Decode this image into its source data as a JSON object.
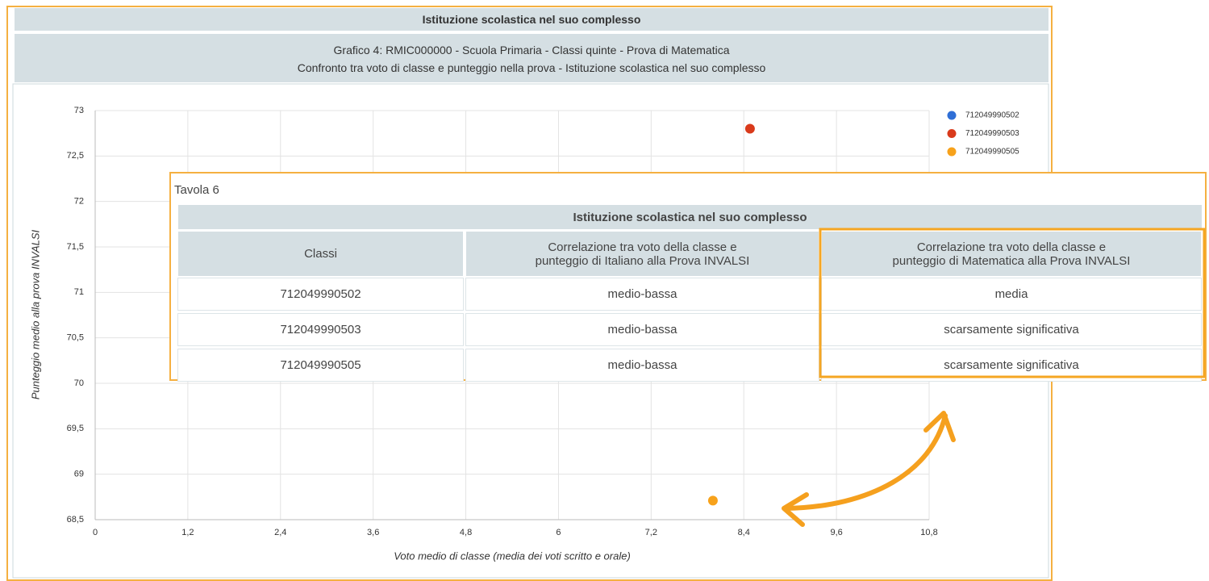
{
  "header": {
    "title": "Istituzione scolastica nel suo complesso",
    "subtitle_lines": [
      "Grafico 4: RMIC000000 - Scuola Primaria - Classi quinte - Prova di Matematica",
      "Confronto tra voto di classe e punteggio nella prova - Istituzione scolastica nel suo complesso"
    ]
  },
  "chart_data": {
    "type": "scatter",
    "x_label": "Voto medio di classe (media dei voti scritto e orale)",
    "y_label": "Punteggio medio alla prova INVALSI",
    "xlim": [
      0,
      10.8
    ],
    "xticks": [
      0,
      {
        "value": 1.2,
        "label": "1,2"
      },
      {
        "value": 2.4,
        "label": "2,4"
      },
      {
        "value": 3.6,
        "label": "3,6"
      },
      {
        "value": 4.8,
        "label": "4,8"
      },
      6,
      {
        "value": 7.2,
        "label": "7,2"
      },
      {
        "value": 8.4,
        "label": "8,4"
      },
      {
        "value": 9.6,
        "label": "9,6"
      },
      {
        "value": 10.8,
        "label": "10,8"
      }
    ],
    "ylim": [
      68.5,
      73
    ],
    "yticks": [
      {
        "value": 68.5,
        "label": "68,5"
      },
      69,
      {
        "value": 69.5,
        "label": "69,5"
      },
      70,
      {
        "value": 70.5,
        "label": "70,5"
      },
      71,
      {
        "value": 71.5,
        "label": "71,5"
      },
      72,
      {
        "value": 72.5,
        "label": "72,5"
      },
      73
    ],
    "grid": true,
    "legend": "top-right",
    "series": [
      {
        "name": "712049990502",
        "color": "#2f6fd6",
        "x": [],
        "y": []
      },
      {
        "name": "712049990503",
        "color": "#d93a1b",
        "x": [
          8.48
        ],
        "y": [
          72.8
        ]
      },
      {
        "name": "712049990505",
        "color": "#f7a21b",
        "x": [
          8.0
        ],
        "y": [
          68.71
        ]
      }
    ]
  },
  "table": {
    "caption": "Tavola 6",
    "title": "Istituzione scolastica nel suo complesso",
    "columns": [
      [
        "Classi"
      ],
      [
        "Correlazione tra voto della classe e",
        "punteggio di Italiano alla Prova INVALSI"
      ],
      [
        "Correlazione tra voto della classe e",
        "punteggio di Matematica alla Prova INVALSI"
      ]
    ],
    "rows": [
      [
        "712049990502",
        "medio-bassa",
        "media"
      ],
      [
        "712049990503",
        "medio-bassa",
        "scarsamente significativa"
      ],
      [
        "712049990505",
        "medio-bassa",
        "scarsamente significativa"
      ]
    ]
  }
}
